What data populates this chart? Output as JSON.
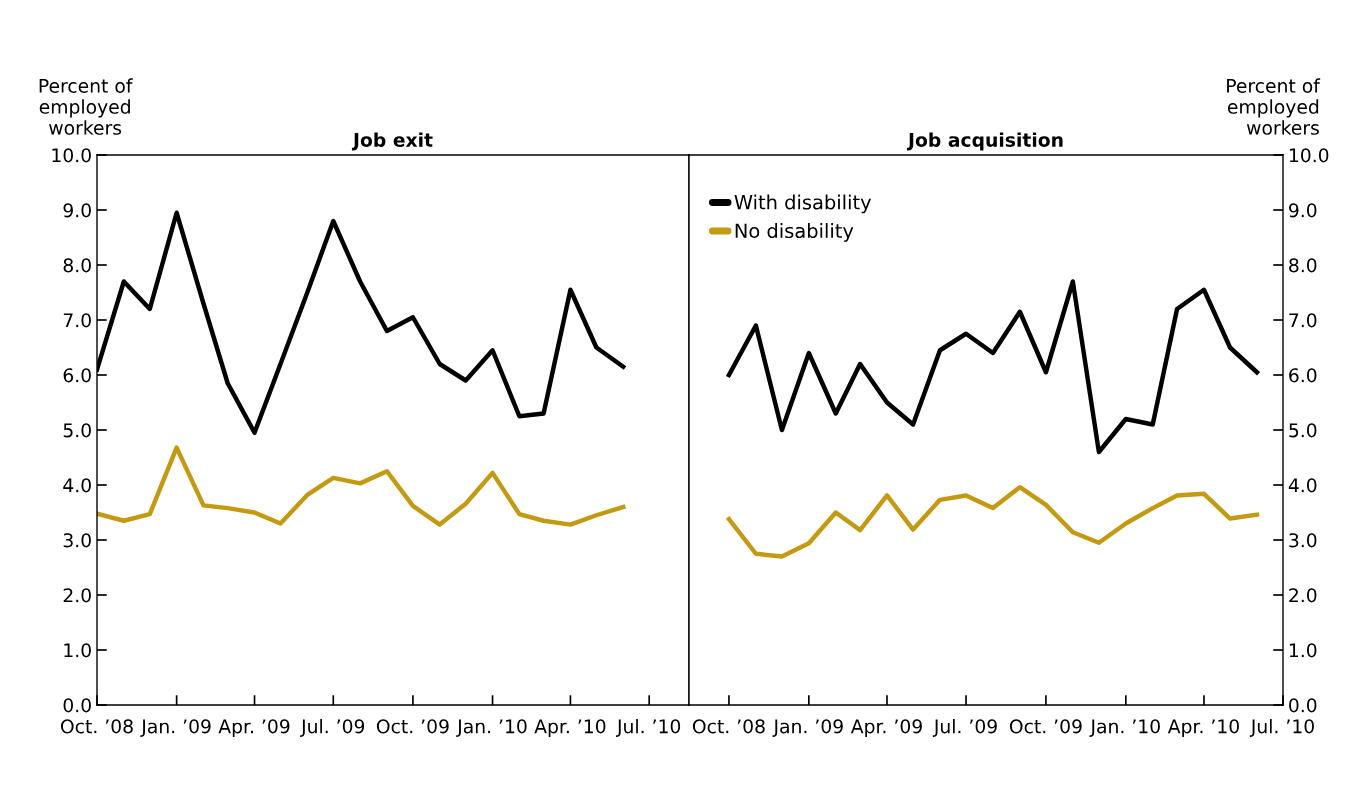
{
  "chart_data": [
    {
      "type": "line",
      "title": "Job exit",
      "ylabel": "Percent of\nemployed\nworkers",
      "x": [
        "2008-10",
        "2008-11",
        "2008-12",
        "2009-01",
        "2009-02",
        "2009-03",
        "2009-04",
        "2009-05",
        "2009-06",
        "2009-07",
        "2009-08",
        "2009-09",
        "2009-10",
        "2009-11",
        "2009-12",
        "2010-01",
        "2010-02",
        "2010-03",
        "2010-04",
        "2010-05",
        "2010-06"
      ],
      "series": [
        {
          "color": "#000000",
          "values": [
            6.1,
            7.7,
            7.2,
            8.95,
            7.3,
            5.85,
            4.95,
            6.2,
            7.5,
            8.8,
            7.7,
            6.8,
            7.05,
            6.2,
            5.9,
            6.45,
            5.25,
            5.3,
            7.55,
            6.5,
            6.15
          ]
        },
        {
          "color": "#c49a12",
          "values": [
            3.48,
            3.35,
            3.47,
            4.68,
            3.63,
            3.58,
            3.5,
            3.3,
            3.82,
            4.13,
            4.03,
            4.25,
            3.62,
            3.28,
            3.66,
            4.22,
            3.47,
            3.35,
            3.28,
            3.45,
            3.6
          ]
        }
      ],
      "xlim": [
        "2008-10",
        "2010-08-16"
      ],
      "xticks": [
        {
          "value": "2008-10",
          "label": "Oct. ’08"
        },
        {
          "value": "2009-01",
          "label": "Jan. ’09"
        },
        {
          "value": "2009-04",
          "label": "Apr. ’09"
        },
        {
          "value": "2009-07",
          "label": "Jul. ’09"
        },
        {
          "value": "2009-10",
          "label": "Oct. ’09"
        },
        {
          "value": "2010-01",
          "label": "Jan. ’10"
        },
        {
          "value": "2010-04",
          "label": "Apr. ’10"
        },
        {
          "value": "2010-07",
          "label": "Jul. ’10"
        }
      ],
      "ylim": [
        0,
        10
      ],
      "yticks": [
        {
          "value": 0,
          "label": "0.0"
        },
        {
          "value": 1,
          "label": "1.0"
        },
        {
          "value": 2,
          "label": "2.0"
        },
        {
          "value": 3,
          "label": "3.0"
        },
        {
          "value": 4,
          "label": "4.0"
        },
        {
          "value": 5,
          "label": "5.0"
        },
        {
          "value": 6,
          "label": "6.0"
        },
        {
          "value": 7,
          "label": "7.0"
        },
        {
          "value": 8,
          "label": "8.0"
        },
        {
          "value": 9,
          "label": "9.0"
        },
        {
          "value": 10,
          "label": "10.0"
        }
      ],
      "grid": false,
      "legend": false,
      "marker": "none",
      "line_style": "solid"
    },
    {
      "type": "line",
      "title": "Job acquisition",
      "y2label": "Percent of\nemployed\nworkers",
      "x": [
        "2008-10",
        "2008-11",
        "2008-12",
        "2009-01",
        "2009-02",
        "2009-03",
        "2009-04",
        "2009-05",
        "2009-06",
        "2009-07",
        "2009-08",
        "2009-09",
        "2009-10",
        "2009-11",
        "2009-12",
        "2010-01",
        "2010-02",
        "2010-03",
        "2010-04",
        "2010-05",
        "2010-06"
      ],
      "series": [
        {
          "name": "With disability",
          "color": "#000000",
          "axis": "y2",
          "values": [
            6.0,
            6.9,
            5.0,
            6.4,
            5.3,
            6.2,
            5.5,
            5.1,
            6.45,
            6.75,
            6.4,
            7.15,
            6.05,
            7.7,
            4.6,
            5.2,
            5.1,
            7.2,
            7.55,
            6.5,
            6.05
          ]
        },
        {
          "name": "No disability",
          "color": "#c49a12",
          "axis": "y2",
          "values": [
            3.38,
            2.75,
            2.7,
            2.94,
            3.5,
            3.18,
            3.81,
            3.19,
            3.73,
            3.81,
            3.58,
            3.96,
            3.64,
            3.14,
            2.95,
            3.3,
            3.58,
            3.81,
            3.84,
            3.39,
            3.46
          ]
        }
      ],
      "xlim": [
        "2008-08-16",
        "2010-07"
      ],
      "xticks": [
        {
          "value": "2008-10",
          "label": "Oct. ’08"
        },
        {
          "value": "2009-01",
          "label": "Jan. ’09"
        },
        {
          "value": "2009-04",
          "label": "Apr. ’09"
        },
        {
          "value": "2009-07",
          "label": "Jul. ’09"
        },
        {
          "value": "2009-10",
          "label": "Oct. ’09"
        },
        {
          "value": "2010-01",
          "label": "Jan. ’10"
        },
        {
          "value": "2010-04",
          "label": "Apr. ’10"
        },
        {
          "value": "2010-07",
          "label": "Jul. ’10"
        }
      ],
      "y2lim": [
        0,
        10
      ],
      "y2ticks": [
        {
          "value": 0,
          "label": "0.0"
        },
        {
          "value": 1,
          "label": "1.0"
        },
        {
          "value": 2,
          "label": "2.0"
        },
        {
          "value": 3,
          "label": "3.0"
        },
        {
          "value": 4,
          "label": "4.0"
        },
        {
          "value": 5,
          "label": "5.0"
        },
        {
          "value": 6,
          "label": "6.0"
        },
        {
          "value": 7,
          "label": "7.0"
        },
        {
          "value": 8,
          "label": "8.0"
        },
        {
          "value": 9,
          "label": "9.0"
        },
        {
          "value": 10,
          "label": "10.0"
        }
      ],
      "grid": false,
      "legend": "top left",
      "marker": "none",
      "line_style": "solid"
    }
  ]
}
